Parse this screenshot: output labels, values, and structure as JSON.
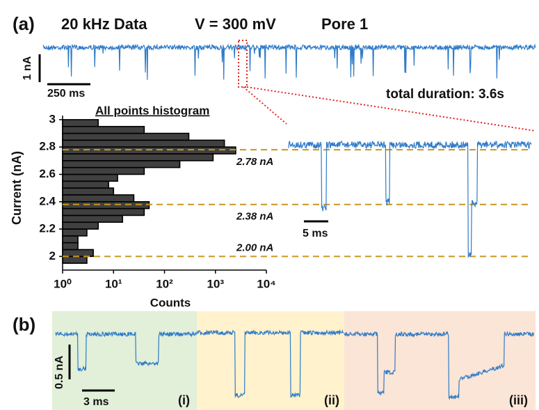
{
  "chart_data": {
    "type": "histogram",
    "orientation": "horizontal",
    "title": "All points histogram",
    "xlabel": "Counts",
    "ylabel": "Current (nA)",
    "xscale": "log",
    "xlim": [
      1,
      10000
    ],
    "xticks": [
      {
        "value": 1,
        "label": "10⁰"
      },
      {
        "value": 10,
        "label": "10¹"
      },
      {
        "value": 100,
        "label": "10²"
      },
      {
        "value": 1000,
        "label": "10³"
      },
      {
        "value": 10000,
        "label": "10⁴"
      }
    ],
    "ylim": [
      1.9,
      3.03
    ],
    "yticks": [
      2,
      2.2,
      2.4,
      2.6,
      2.8,
      3
    ],
    "bins": [
      1.95,
      2.0,
      2.05,
      2.1,
      2.15,
      2.2,
      2.25,
      2.3,
      2.35,
      2.4,
      2.45,
      2.5,
      2.55,
      2.6,
      2.65,
      2.7,
      2.75,
      2.8,
      2.85,
      2.9,
      2.95,
      3.0
    ],
    "values": [
      3,
      4,
      2,
      2,
      3,
      5,
      15,
      40,
      50,
      25,
      10,
      8,
      12,
      40,
      200,
      900,
      2500,
      1500,
      300,
      40,
      5
    ],
    "color": "#404040",
    "levels": [
      {
        "value": 2.78,
        "label": "2.78 nA"
      },
      {
        "value": 2.38,
        "label": "2.38 nA"
      },
      {
        "value": 2.0,
        "label": "2.00 nA"
      }
    ],
    "level_color": "#c8961e",
    "annotations": {
      "panel_a": "(a)",
      "sampling": "20 kHz Data",
      "voltage": "V = 300 mV",
      "pore": "Pore 1",
      "current_scale": "1 nA",
      "time_scale": "250 ms",
      "total_duration": "total duration: 3.6s",
      "zoom_time_scale": "5 ms",
      "panel_b": "(b)",
      "b_current_scale": "0.5 nA",
      "b_time_scale": "3 ms",
      "trace_i": "(i)",
      "trace_ii": "(ii)",
      "trace_iii": "(iii)"
    }
  }
}
